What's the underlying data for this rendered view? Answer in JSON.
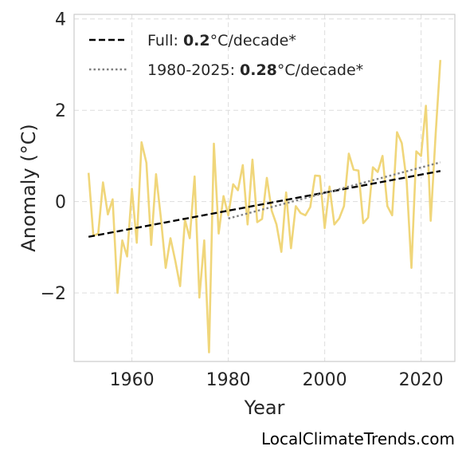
{
  "chart_data": {
    "type": "line",
    "xlabel": "Year",
    "ylabel": "Anomaly (°C)",
    "xlim": [
      1948,
      2027
    ],
    "ylim": [
      -3.5,
      4.1
    ],
    "x_ticks": [
      1960,
      1980,
      2000,
      2020
    ],
    "y_ticks": [
      -2,
      0,
      2,
      4
    ],
    "y_tick_labels": [
      "−2",
      "0",
      "2",
      "4"
    ],
    "grid": true,
    "legend_position": "top-left",
    "series": [
      {
        "x": [
          1951,
          1952,
          1953,
          1954,
          1955,
          1956,
          1957,
          1958,
          1959,
          1960,
          1961,
          1962,
          1963,
          1964,
          1965,
          1966,
          1967,
          1968,
          1969,
          1970,
          1971,
          1972,
          1973,
          1974,
          1975,
          1976,
          1977,
          1978,
          1979,
          1980,
          1981,
          1982,
          1983,
          1984,
          1985,
          1986,
          1987,
          1988,
          1989,
          1990,
          1991,
          1992,
          1993,
          1994,
          1995,
          1996,
          1997,
          1998,
          1999,
          2000,
          2001,
          2002,
          2003,
          2004,
          2005,
          2006,
          2007,
          2008,
          2009,
          2010,
          2011,
          2012,
          2013,
          2014,
          2015,
          2016,
          2017,
          2018,
          2019,
          2020,
          2021,
          2022,
          2023,
          2024
        ],
        "values": [
          0.63,
          -0.75,
          -0.7,
          0.42,
          -0.28,
          0.05,
          -2.0,
          -0.85,
          -1.2,
          0.28,
          -0.9,
          1.3,
          0.85,
          -0.95,
          0.6,
          -0.35,
          -1.45,
          -0.8,
          -1.3,
          -1.85,
          -0.4,
          -0.8,
          0.55,
          -2.1,
          -0.85,
          -3.3,
          1.27,
          -0.7,
          0.12,
          -0.3,
          0.38,
          0.25,
          0.8,
          -0.5,
          0.92,
          -0.45,
          -0.38,
          0.52,
          -0.2,
          -0.5,
          -1.1,
          0.2,
          -1.02,
          -0.1,
          -0.25,
          -0.3,
          -0.12,
          0.57,
          0.56,
          -0.58,
          0.33,
          -0.5,
          -0.37,
          -0.1,
          1.05,
          0.7,
          0.68,
          -0.47,
          -0.35,
          0.75,
          0.65,
          1.0,
          -0.1,
          -0.3,
          1.52,
          1.28,
          0.45,
          -1.45,
          1.1,
          1.0,
          2.1,
          -0.42,
          1.45,
          3.1
        ],
        "color": "#f0d67a"
      }
    ],
    "trendlines": [
      {
        "label_prefix": "Full: ",
        "label_value": "0.2",
        "label_suffix": "°C/decade*",
        "x": [
          1951,
          2024
        ],
        "y": [
          -0.77,
          0.67
        ],
        "color": "#000000",
        "style": "dashed"
      },
      {
        "label_prefix": "1980-2025: ",
        "label_value": "0.28",
        "label_suffix": "°C/decade*",
        "x": [
          1980,
          2024
        ],
        "y": [
          -0.37,
          0.86
        ],
        "color": "#808080",
        "style": "dotted"
      }
    ]
  },
  "footer": "LocalClimateTrends.com"
}
